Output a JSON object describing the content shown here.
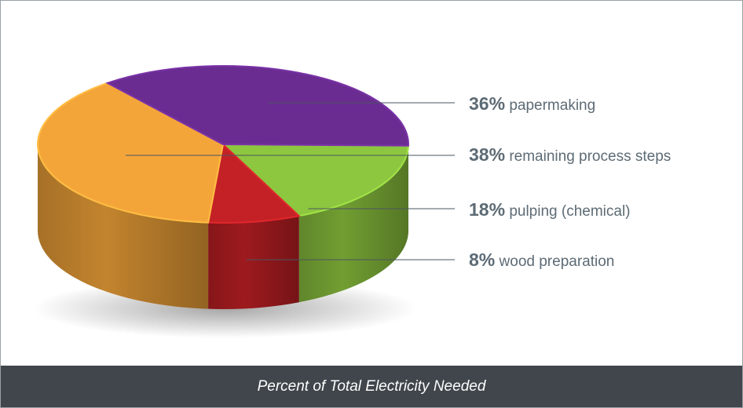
{
  "chart_data": {
    "type": "pie",
    "title": "Percent of Total Electricity Needed",
    "slices": [
      {
        "percent": "36%",
        "label": "papermaking",
        "value": 36,
        "color": "#6a2c91"
      },
      {
        "percent": "38%",
        "label": "remaining process steps",
        "value": 38,
        "color": "#f4a53a"
      },
      {
        "percent": "18%",
        "label": "pulping (chemical)",
        "value": 18,
        "color": "#8dc63f"
      },
      {
        "percent": "8%",
        "label": "wood preparation",
        "value": 8,
        "color": "#c42126"
      }
    ]
  }
}
